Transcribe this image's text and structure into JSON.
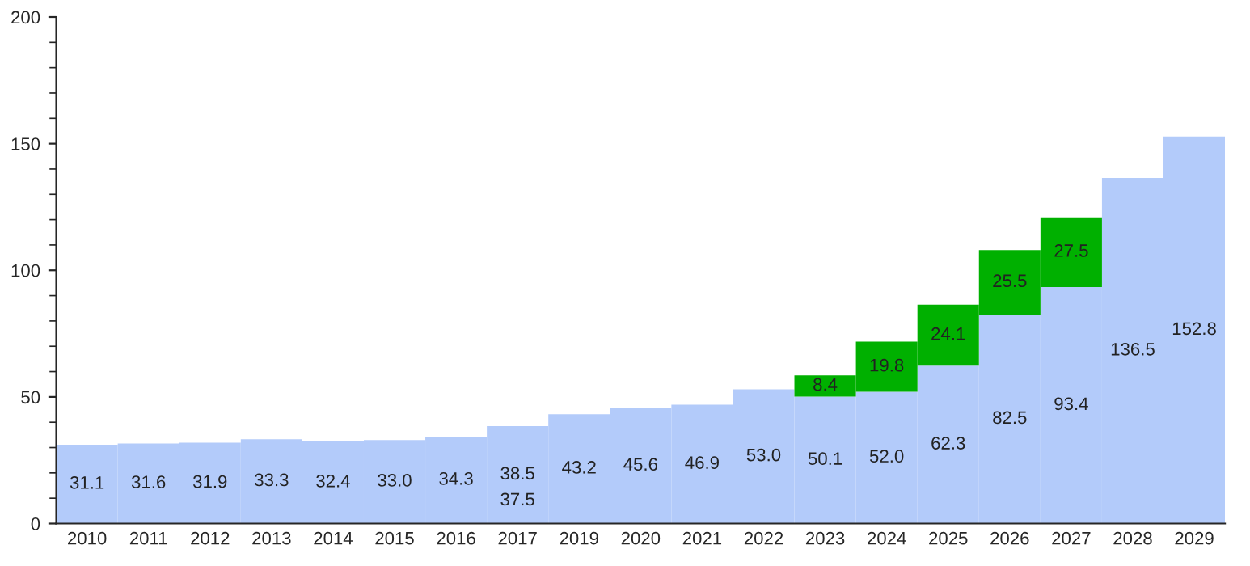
{
  "chart_data": {
    "type": "bar",
    "stacked": true,
    "categories": [
      "2010",
      "2011",
      "2012",
      "2013",
      "2014",
      "2015",
      "2016",
      "2017",
      "2019",
      "2020",
      "2021",
      "2022",
      "2023",
      "2024",
      "2025",
      "2026",
      "2027",
      "2028",
      "2029"
    ],
    "series": [
      {
        "color": "#b3cbfa",
        "values": [
          31.1,
          31.6,
          31.9,
          33.3,
          32.4,
          33.0,
          34.3,
          38.5,
          43.2,
          45.6,
          46.9,
          53.0,
          50.1,
          52.0,
          62.3,
          82.5,
          93.4,
          136.5,
          152.8
        ],
        "value_labels": [
          "31.1",
          "31.6",
          "31.9",
          "33.3",
          "32.4",
          "33.0",
          "34.3",
          "38.5",
          "43.2",
          "45.6",
          "46.9",
          "53.0",
          "50.1",
          "52.0",
          "62.3",
          "82.5",
          "93.4",
          "136.5",
          "152.8"
        ]
      },
      {
        "color": "#00b000",
        "values": [
          null,
          null,
          null,
          null,
          null,
          null,
          null,
          null,
          null,
          null,
          null,
          null,
          8.4,
          19.8,
          24.1,
          25.5,
          27.5,
          null,
          null
        ],
        "value_labels": [
          null,
          null,
          null,
          null,
          null,
          null,
          null,
          null,
          null,
          null,
          null,
          null,
          "8.4",
          "19.8",
          "24.1",
          "25.5",
          "27.5",
          null,
          null
        ]
      }
    ],
    "annotations": [
      "37.5"
    ],
    "ylim": [
      0,
      200
    ],
    "yticks": [
      0,
      {
        "value": 10,
        "label": null
      },
      {
        "value": 20,
        "label": null
      },
      {
        "value": 30,
        "label": null
      },
      {
        "value": 40,
        "label": null
      },
      50,
      {
        "value": 60,
        "label": null
      },
      {
        "value": 70,
        "label": null
      },
      {
        "value": 80,
        "label": null
      },
      {
        "value": 90,
        "label": null
      },
      100,
      {
        "value": 110,
        "label": null
      },
      {
        "value": 120,
        "label": null
      },
      {
        "value": 130,
        "label": null
      },
      {
        "value": 140,
        "label": null
      },
      150,
      {
        "value": 160,
        "label": null
      },
      {
        "value": 170,
        "label": null
      },
      {
        "value": 180,
        "label": null
      },
      {
        "value": 190,
        "label": null
      },
      200
    ],
    "grid": false,
    "legend": false
  }
}
